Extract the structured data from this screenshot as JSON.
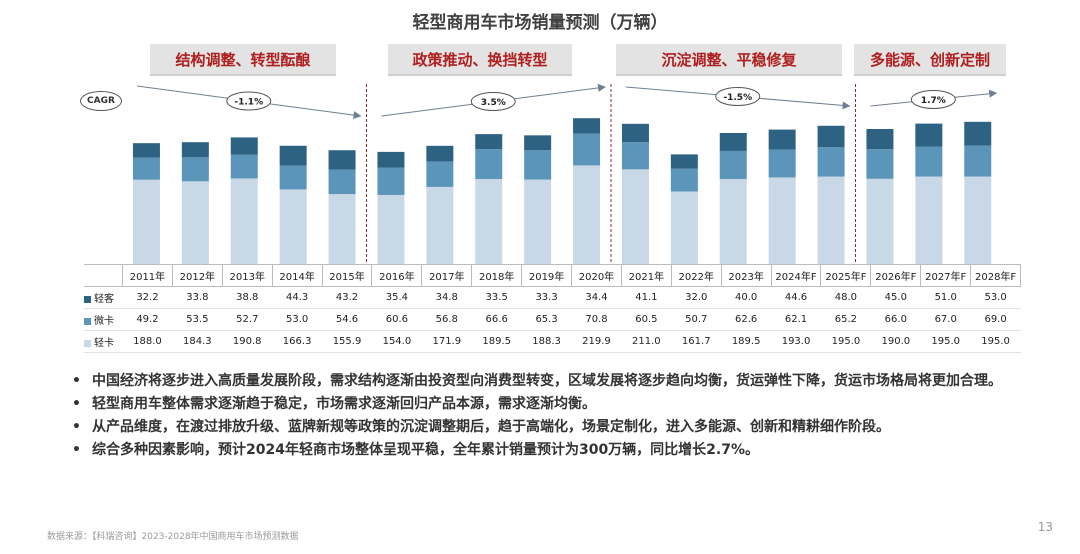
{
  "title": "轻型商用车市场销量预测（万辆）",
  "phases": [
    {
      "label": "结构调整、转型酝酿"
    },
    {
      "label": "政策推动、换挡转型"
    },
    {
      "label": "沉淀调整、平稳修复"
    },
    {
      "label": "多能源、创新定制"
    }
  ],
  "cagr": {
    "label": "CAGR",
    "values": [
      "-1.1%",
      "3.5%",
      "-1.5%",
      "1.7%"
    ]
  },
  "chart_data": {
    "type": "bar",
    "stacked": true,
    "categories": [
      "2011年",
      "2012年",
      "2013年",
      "2014年",
      "2015年",
      "2016年",
      "2017年",
      "2018年",
      "2019年",
      "2020年",
      "2021年",
      "2022年",
      "2023年",
      "2024年F",
      "2025年F",
      "2026年F",
      "2027年F",
      "2028年F"
    ],
    "series": [
      {
        "name": "轻卡",
        "color": "#c9d8e7",
        "values": [
          188.0,
          184.3,
          190.8,
          166.3,
          155.9,
          154.0,
          171.9,
          189.5,
          188.3,
          219.9,
          211.0,
          161.7,
          189.5,
          193.0,
          195.0,
          190.0,
          195.0,
          195.0
        ]
      },
      {
        "name": "微卡",
        "color": "#5b95ba",
        "values": [
          49.2,
          53.5,
          52.7,
          53.0,
          54.6,
          60.6,
          56.8,
          66.6,
          65.3,
          70.8,
          60.5,
          50.7,
          62.6,
          62.1,
          65.2,
          66.0,
          67.0,
          69.0
        ]
      },
      {
        "name": "轻客",
        "color": "#2e6283",
        "values": [
          32.2,
          33.8,
          38.8,
          44.3,
          43.2,
          35.4,
          34.8,
          33.5,
          33.3,
          34.4,
          41.1,
          32.0,
          40.0,
          44.6,
          48.0,
          45.0,
          51.0,
          53.0
        ]
      }
    ],
    "table_rows": [
      {
        "name": "轻客",
        "color": "#2e6283",
        "values": [
          "32.2",
          "33.8",
          "38.8",
          "44.3",
          "43.2",
          "35.4",
          "34.8",
          "33.5",
          "33.3",
          "34.4",
          "41.1",
          "32.0",
          "40.0",
          "44.6",
          "48.0",
          "45.0",
          "51.0",
          "53.0"
        ]
      },
      {
        "name": "微卡",
        "color": "#5b95ba",
        "values": [
          "49.2",
          "53.5",
          "52.7",
          "53.0",
          "54.6",
          "60.6",
          "56.8",
          "66.6",
          "65.3",
          "70.8",
          "60.5",
          "50.7",
          "62.6",
          "62.1",
          "65.2",
          "66.0",
          "67.0",
          "69.0"
        ]
      },
      {
        "name": "轻卡",
        "color": "#c9d8e7",
        "values": [
          "188.0",
          "184.3",
          "190.8",
          "166.3",
          "155.9",
          "154.0",
          "171.9",
          "189.5",
          "188.3",
          "219.9",
          "211.0",
          "161.7",
          "189.5",
          "193.0",
          "195.0",
          "190.0",
          "195.0",
          "195.0"
        ]
      }
    ],
    "ylim": [
      0,
      330
    ],
    "grid": false
  },
  "bullets": [
    "中国经济将逐步进入高质量发展阶段，需求结构逐渐由投资型向消费型转变，区域发展将逐步趋向均衡，货运弹性下降，货运市场格局将更加合理。",
    "轻型商用车整体需求逐渐趋于稳定，市场需求逐渐回归产品本源，需求逐渐均衡。",
    "从产品维度，在渡过排放升级、蓝牌新规等政策的沉淀调整期后，趋于高端化，场景定制化，进入多能源、创新和精耕细作阶段。",
    "综合多种因素影响，预计2024年轻商市场整体呈现平稳，全年累计销量预计为300万辆，同比增长2.7%。"
  ],
  "bullet_symbol": "•",
  "source": "数据来源：【科瑞咨询】2023-2028年中国商用车市场预测数据",
  "page_number": "13"
}
